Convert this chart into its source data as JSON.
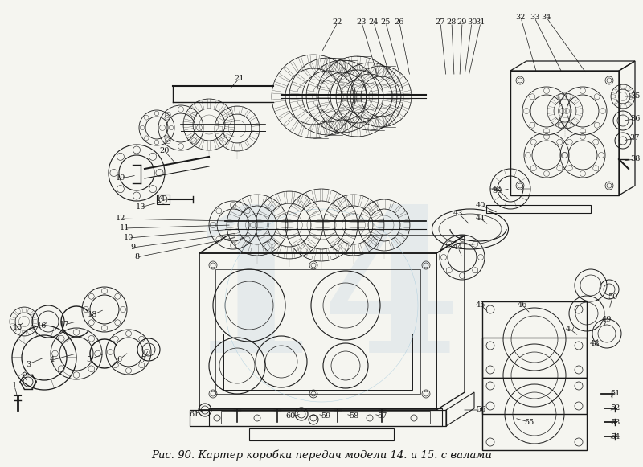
{
  "caption": "Рис. 90. Картер коробки передач модели 14. и 15. с валами",
  "caption_fontsize": 9.5,
  "bg_color": "#f5f5f0",
  "fig_width": 8.0,
  "fig_height": 5.81,
  "dpi": 100,
  "line_color": "#1a1a1a",
  "label_fontsize": 7.0,
  "watermark_color": "#b8cde0",
  "watermark_alpha": 0.25
}
